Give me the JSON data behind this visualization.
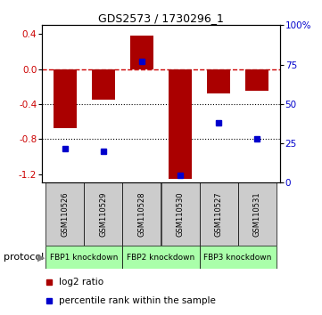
{
  "title": "GDS2573 / 1730296_1",
  "samples": [
    "GSM110526",
    "GSM110529",
    "GSM110528",
    "GSM110530",
    "GSM110527",
    "GSM110531"
  ],
  "log2_ratios": [
    -0.68,
    -0.35,
    0.38,
    -1.25,
    -0.28,
    -0.25
  ],
  "percentile_ranks": [
    22,
    20,
    77,
    5,
    38,
    28
  ],
  "groups": [
    {
      "label": "FBP1 knockdown",
      "start": 0,
      "end": 1
    },
    {
      "label": "FBP2 knockdown",
      "start": 2,
      "end": 3
    },
    {
      "label": "FBP3 knockdown",
      "start": 4,
      "end": 5
    }
  ],
  "bar_color": "#aa0000",
  "dot_color": "#0000cc",
  "ylim_left": [
    -1.3,
    0.5
  ],
  "ylim_right": [
    0,
    100
  ],
  "yticks_left": [
    -1.2,
    -0.8,
    -0.4,
    0.0,
    0.4
  ],
  "yticks_right": [
    0,
    25,
    50,
    75,
    100
  ],
  "ytick_labels_right": [
    "0",
    "25",
    "50",
    "75",
    "100%"
  ],
  "hlines": [
    -0.8,
    -0.4
  ],
  "dashed_hline": 0.0,
  "legend_items": [
    {
      "label": "log2 ratio",
      "color": "#aa0000"
    },
    {
      "label": "percentile rank within the sample",
      "color": "#0000cc"
    }
  ],
  "protocol_label": "protocol",
  "sample_box_color": "#cccccc",
  "group_color": "#aaffaa",
  "bar_width": 0.6,
  "title_fontsize": 9,
  "tick_fontsize": 7.5,
  "sample_fontsize": 6,
  "group_fontsize": 6.5,
  "legend_fontsize": 7.5
}
